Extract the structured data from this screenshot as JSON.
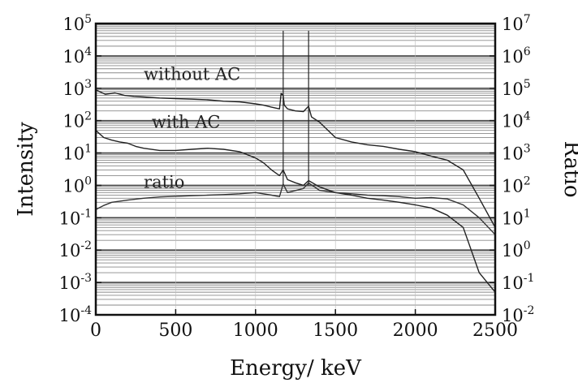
{
  "chart_data": {
    "type": "line",
    "title": "",
    "xlabel": "Energy/ keV",
    "ylabel": "Intensity",
    "y2label": "Ratio",
    "xlim": [
      0,
      2500
    ],
    "xticks": [
      0,
      500,
      1000,
      1500,
      2000,
      2500
    ],
    "x_tick_labels": [
      "0",
      "500",
      "1000",
      "1500",
      "2000",
      "2500"
    ],
    "ylim": [
      0.0001,
      100000
    ],
    "yscale": "log",
    "yticks": [
      {
        "base": "10",
        "exp": "5",
        "value": 100000
      },
      {
        "base": "10",
        "exp": "4",
        "value": 10000
      },
      {
        "base": "10",
        "exp": "3",
        "value": 1000
      },
      {
        "base": "10",
        "exp": "2",
        "value": 100
      },
      {
        "base": "10",
        "exp": "1",
        "value": 10
      },
      {
        "base": "10",
        "exp": "0",
        "value": 1
      },
      {
        "base": "10",
        "exp": "-1",
        "value": 0.1
      },
      {
        "base": "10",
        "exp": "-2",
        "value": 0.01
      },
      {
        "base": "10",
        "exp": "-3",
        "value": 0.001
      },
      {
        "base": "10",
        "exp": "-4",
        "value": 0.0001
      }
    ],
    "y2lim": [
      0.01,
      10000000
    ],
    "y2scale": "log",
    "y2ticks": [
      {
        "base": "10",
        "exp": "7",
        "value": 10000000
      },
      {
        "base": "10",
        "exp": "6",
        "value": 1000000
      },
      {
        "base": "10",
        "exp": "5",
        "value": 100000
      },
      {
        "base": "10",
        "exp": "4",
        "value": 10000
      },
      {
        "base": "10",
        "exp": "3",
        "value": 1000
      },
      {
        "base": "10",
        "exp": "2",
        "value": 100
      },
      {
        "base": "10",
        "exp": "1",
        "value": 10
      },
      {
        "base": "10",
        "exp": "0",
        "value": 1
      },
      {
        "base": "10",
        "exp": "-1",
        "value": 0.1
      },
      {
        "base": "10",
        "exp": "-2",
        "value": 0.01
      }
    ],
    "grid": true,
    "vertical_markers": [
      1173,
      1332
    ],
    "annotations": [
      {
        "text": "without AC",
        "x": 300,
        "y": 1800
      },
      {
        "text": "with AC",
        "x": 350,
        "y": 60
      },
      {
        "text": "ratio",
        "x": 300,
        "y": 0.85
      }
    ],
    "series": [
      {
        "label": "without AC",
        "axis": "left",
        "color": "#222222",
        "x": [
          0,
          60,
          120,
          180,
          240,
          300,
          400,
          500,
          600,
          700,
          800,
          900,
          1000,
          1050,
          1100,
          1150,
          1160,
          1173,
          1180,
          1200,
          1250,
          1300,
          1332,
          1350,
          1400,
          1500,
          1600,
          1700,
          1800,
          1900,
          2000,
          2100,
          2200,
          2300,
          2400,
          2500
        ],
        "y": [
          900,
          650,
          720,
          600,
          560,
          540,
          500,
          480,
          460,
          440,
          400,
          380,
          330,
          300,
          260,
          230,
          700,
          600,
          300,
          230,
          200,
          190,
          280,
          130,
          90,
          30,
          22,
          18,
          16,
          13,
          11,
          8,
          6,
          3,
          0.4,
          0.05
        ]
      },
      {
        "label": "with AC",
        "axis": "left",
        "color": "#222222",
        "x": [
          0,
          50,
          100,
          150,
          200,
          250,
          300,
          400,
          500,
          600,
          700,
          800,
          900,
          1000,
          1050,
          1100,
          1150,
          1173,
          1200,
          1250,
          1300,
          1332,
          1400,
          1500,
          1600,
          1700,
          1800,
          1900,
          2000,
          2100,
          2200,
          2300,
          2400,
          2500
        ],
        "y": [
          50,
          30,
          25,
          22,
          20,
          16,
          14,
          12,
          12,
          13,
          14,
          13,
          11,
          7,
          5,
          3,
          2,
          3,
          1.5,
          1.2,
          1,
          1.4,
          0.9,
          0.6,
          0.5,
          0.4,
          0.35,
          0.3,
          0.25,
          0.2,
          0.12,
          0.05,
          0.002,
          0.0005
        ]
      },
      {
        "label": "ratio",
        "axis": "right",
        "color": "#333333",
        "x": [
          0,
          50,
          100,
          200,
          300,
          400,
          500,
          600,
          700,
          800,
          900,
          1000,
          1100,
          1150,
          1173,
          1200,
          1300,
          1332,
          1400,
          1500,
          1600,
          1700,
          1800,
          1900,
          2000,
          2100,
          2200,
          2300,
          2400,
          2500
        ],
        "y": [
          18,
          24,
          30,
          35,
          40,
          44,
          46,
          48,
          50,
          52,
          55,
          60,
          50,
          45,
          110,
          60,
          80,
          120,
          70,
          60,
          55,
          50,
          48,
          45,
          40,
          42,
          38,
          25,
          10,
          3
        ]
      }
    ]
  }
}
